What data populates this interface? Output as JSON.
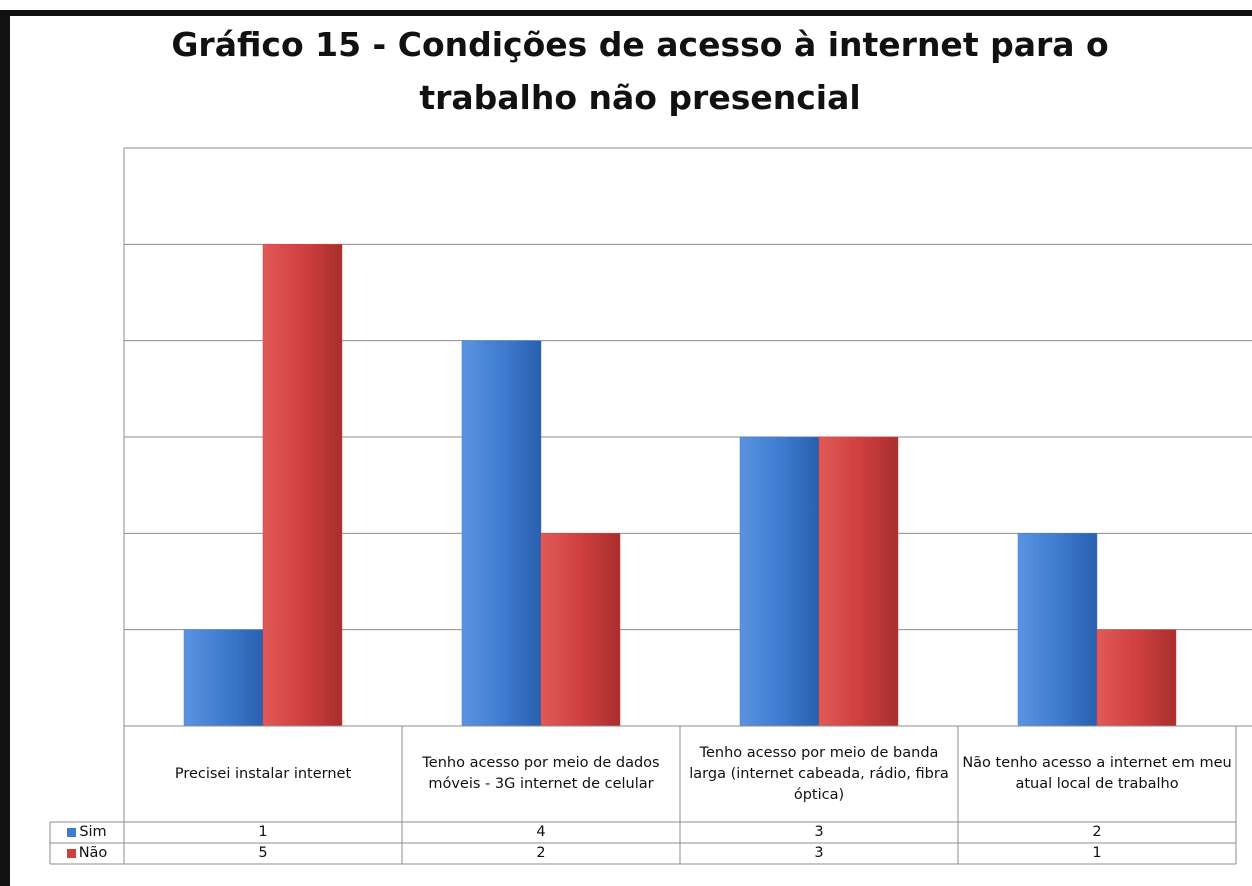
{
  "chart_data": {
    "type": "bar",
    "title": "Gráfico 15 - Condições de acesso à internet para o trabalho não presencial",
    "categories": [
      "Precisei instalar internet",
      "Tenho acesso por meio de dados móveis - 3G internet de celular",
      "Tenho acesso por meio de banda larga (internet cabeada, rádio, fibra óptica)",
      "Não tenho acesso a internet em meu atual local de trabalho"
    ],
    "series": [
      {
        "name": "Sim",
        "color": "#3f7cd0",
        "values": [
          1,
          4,
          3,
          2
        ]
      },
      {
        "name": "Não",
        "color": "#d0403f",
        "values": [
          5,
          2,
          3,
          1
        ]
      }
    ],
    "ylim": [
      0,
      6
    ],
    "yticks": [
      0,
      1,
      2,
      3,
      4,
      5,
      6
    ],
    "grid": true,
    "data_table": true
  }
}
